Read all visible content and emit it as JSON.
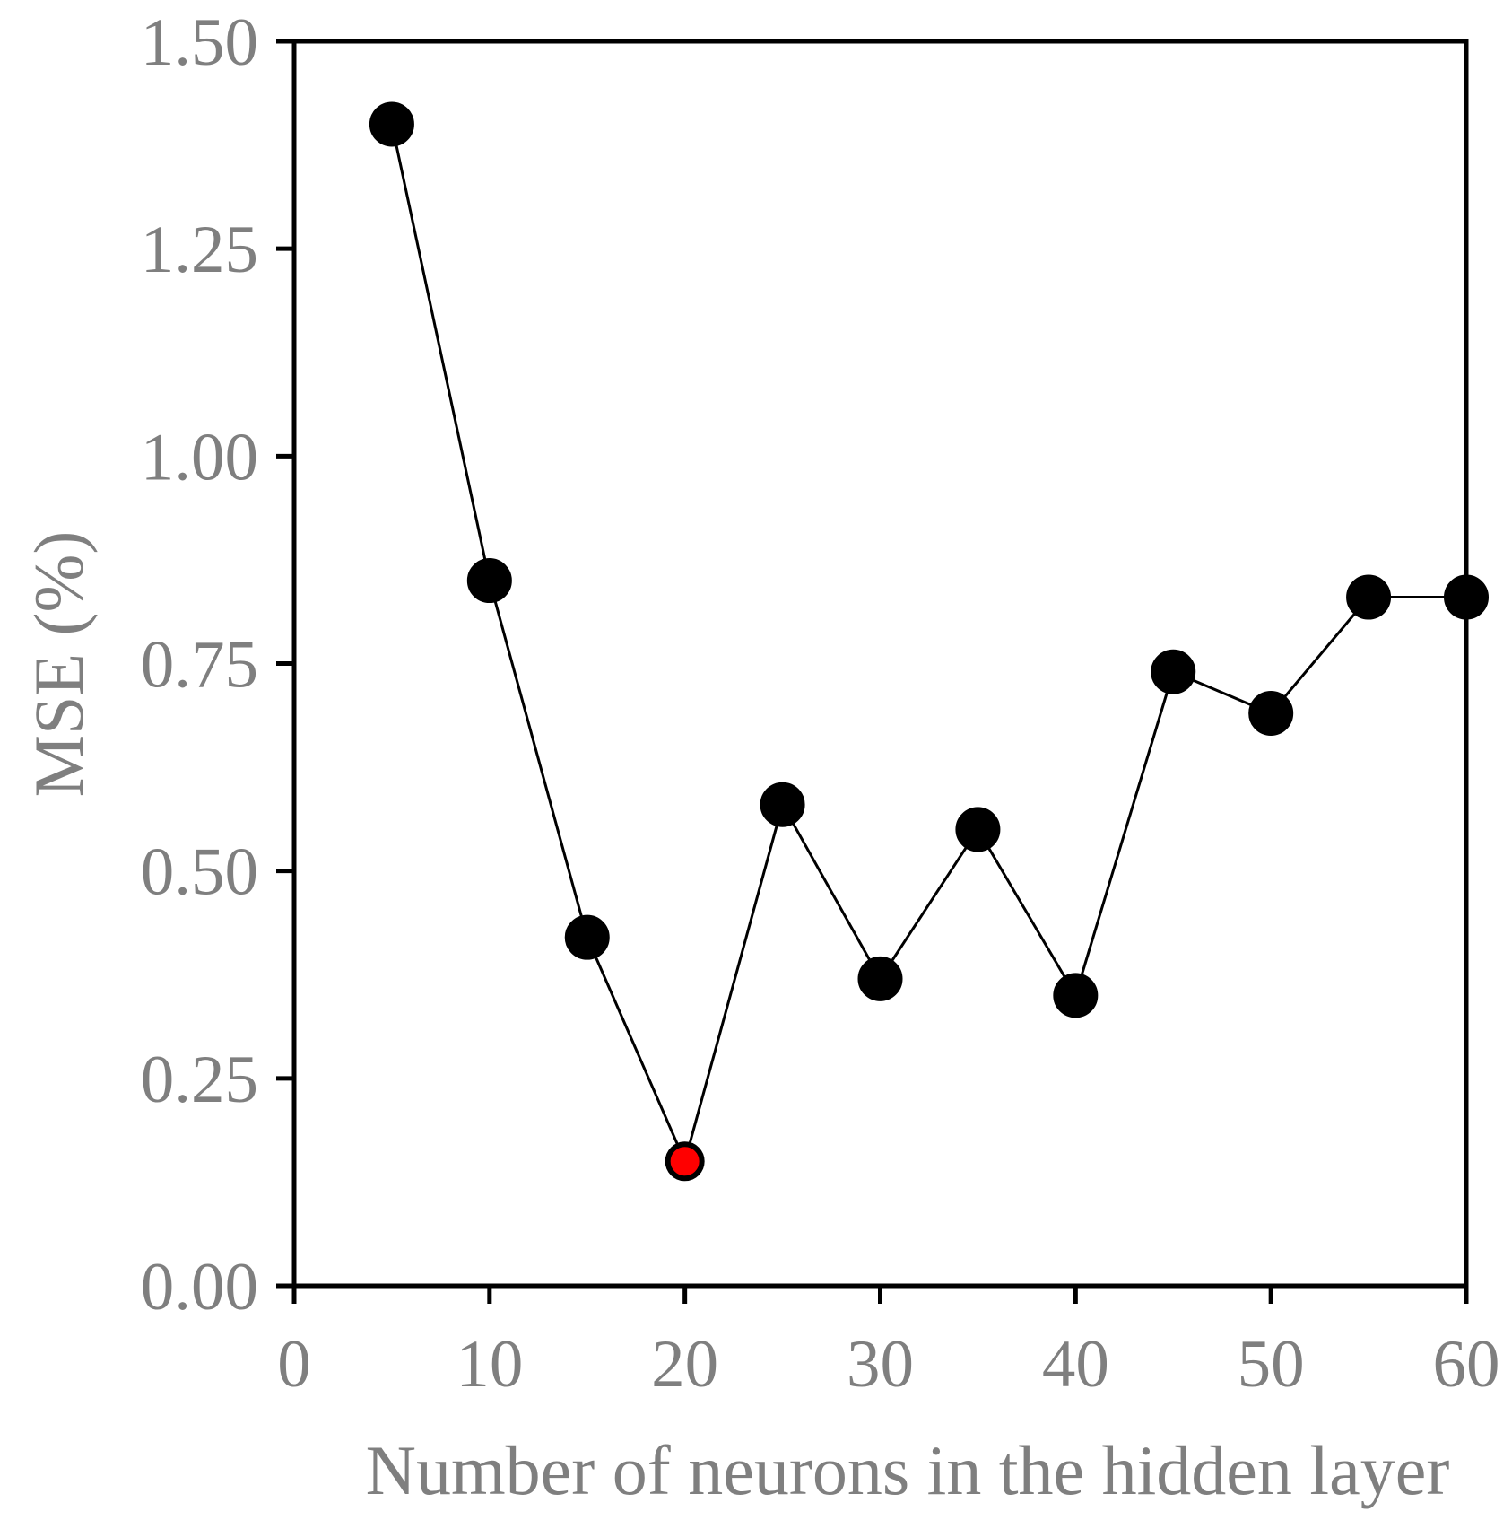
{
  "chart_data": {
    "type": "line",
    "xlabel": "Number of neurons in the hidden layer",
    "ylabel": "MSE (%)",
    "xlim": [
      0,
      60
    ],
    "ylim": [
      0,
      1.5
    ],
    "x_ticks": [
      "0",
      "10",
      "20",
      "30",
      "40",
      "50",
      "60"
    ],
    "y_ticks": [
      "0.00",
      "0.25",
      "0.50",
      "0.75",
      "1.00",
      "1.25",
      "1.50"
    ],
    "grid": false,
    "series": [
      {
        "x": [
          5,
          10,
          15,
          20,
          25,
          30,
          35,
          40,
          45,
          50,
          55,
          60
        ],
        "y": [
          1.4,
          0.85,
          0.42,
          0.15,
          0.58,
          0.37,
          0.55,
          0.35,
          0.74,
          0.69,
          0.83,
          0.83
        ],
        "line_color": "#000000",
        "marker_color": "#000000"
      }
    ],
    "highlight": {
      "x": 20,
      "y": 0.15,
      "color": "#ff0000"
    },
    "text_color": "#7f7f7f"
  }
}
